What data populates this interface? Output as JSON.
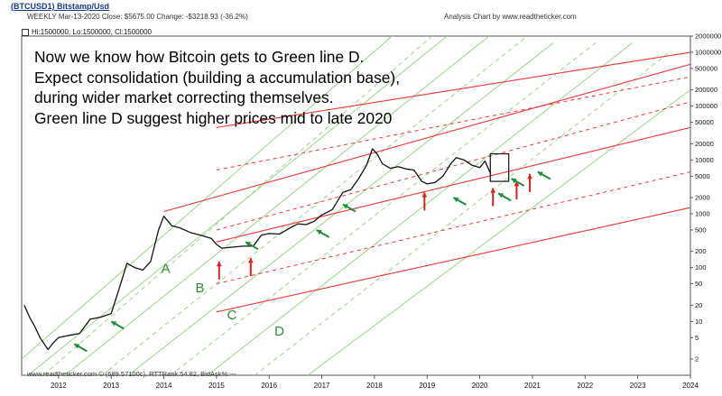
{
  "header": {
    "title": "(BTCUSD1) Bitstamp/Usd",
    "subtitle": "WEEKLY  Mar-13-2020  Close: $5675.00  Change: -$3218.93  (-36.2%)",
    "source": "Analysis Chart by www.readtheticker.com"
  },
  "legend": {
    "text": "Hi:1500000, Lo:1500000, Cl:1500000"
  },
  "annotation": {
    "lines": [
      "Now we know how Bitcoin gets to Green line D.",
      "Expect consolidation (building a accumulation base),",
      "during wider market correcting themselves.",
      "Green line D suggest higher prices mid to late 2020"
    ]
  },
  "footer": {
    "text": "www.readtheticker.com © (689.57100c), RTTRank:54.82, BidAsk%:---"
  },
  "chart_data": {
    "type": "line",
    "scale": "log",
    "ylim": [
      1,
      2000000
    ],
    "xlim": [
      2011.3,
      2024.0
    ],
    "y_ticks": [
      2000000,
      1000000,
      500000,
      200000,
      100000,
      50000,
      20000,
      10000,
      5000,
      2000,
      1000,
      500,
      200,
      100,
      50,
      20,
      10,
      5,
      2
    ],
    "y_tick_labels": [
      "2000000",
      "1000000",
      "500000",
      "200000",
      "100000",
      "50000",
      "20000",
      "10000",
      "5000",
      "2000",
      "1000",
      "500",
      "200",
      "100",
      "50",
      "20",
      "10",
      "5",
      "2"
    ],
    "x_ticks": [
      2012,
      2013,
      2014,
      2015,
      2016,
      2017,
      2018,
      2019,
      2020,
      2021,
      2022,
      2023,
      2024
    ],
    "x_tick_labels": [
      "2012",
      "2013",
      "2014",
      "2015",
      "2016",
      "2017",
      "2018",
      "2019",
      "2020",
      "2021",
      "2022",
      "2023",
      "2024"
    ],
    "price_series": {
      "x": [
        2011.35,
        2011.45,
        2011.55,
        2011.65,
        2011.8,
        2011.9,
        2012.0,
        2012.2,
        2012.4,
        2012.6,
        2012.8,
        2013.0,
        2013.15,
        2013.3,
        2013.45,
        2013.6,
        2013.75,
        2013.9,
        2014.0,
        2014.15,
        2014.3,
        2014.5,
        2014.7,
        2014.9,
        2015.0,
        2015.1,
        2015.3,
        2015.5,
        2015.7,
        2015.85,
        2016.0,
        2016.2,
        2016.4,
        2016.55,
        2016.7,
        2016.85,
        2017.0,
        2017.2,
        2017.4,
        2017.55,
        2017.7,
        2017.85,
        2017.96,
        2018.05,
        2018.15,
        2018.3,
        2018.45,
        2018.6,
        2018.75,
        2018.9,
        2019.0,
        2019.15,
        2019.3,
        2019.45,
        2019.55,
        2019.7,
        2019.85,
        2020.0,
        2020.1,
        2020.2
      ],
      "y": [
        20,
        12,
        8,
        5,
        3,
        4,
        5,
        5.5,
        6,
        11,
        12,
        14,
        40,
        120,
        100,
        90,
        130,
        500,
        900,
        600,
        550,
        450,
        400,
        350,
        270,
        230,
        240,
        250,
        250,
        400,
        430,
        420,
        550,
        650,
        630,
        720,
        950,
        1200,
        2500,
        2800,
        4500,
        8000,
        16000,
        13000,
        8500,
        7000,
        7500,
        6800,
        6500,
        4000,
        3600,
        3800,
        5000,
        8500,
        11000,
        10000,
        8000,
        7200,
        9500,
        5700
      ]
    },
    "channel_lines": {
      "red_solid": [
        {
          "x": [
            2015.0,
            2024.0
          ],
          "y": [
            40000,
            1000000
          ]
        },
        {
          "x": [
            2014.0,
            2024.0
          ],
          "y": [
            1100,
            600000
          ]
        },
        {
          "x": [
            2015.0,
            2024.0
          ],
          "y": [
            300,
            40000
          ]
        },
        {
          "x": [
            2015.0,
            2024.0
          ],
          "y": [
            15,
            1300
          ]
        }
      ],
      "red_dashed": [
        {
          "x": [
            2015.0,
            2024.0
          ],
          "y": [
            6500,
            350000
          ]
        },
        {
          "x": [
            2015.0,
            2024.0
          ],
          "y": [
            500,
            120000
          ]
        },
        {
          "x": [
            2015.0,
            2024.0
          ],
          "y": [
            50,
            6000
          ]
        }
      ],
      "green_solid": [
        {
          "x": [
            2011.3,
            2018.8
          ],
          "y": [
            2,
            5000000
          ]
        },
        {
          "x": [
            2011.3,
            2019.6
          ],
          "y": [
            0.8,
            3000000
          ]
        },
        {
          "x": [
            2012.0,
            2020.4
          ],
          "y": [
            0.8,
            3000000
          ]
        },
        {
          "x": [
            2013.2,
            2021.4
          ],
          "y": [
            0.8,
            1500000
          ]
        },
        {
          "x": [
            2014.7,
            2022.9
          ],
          "y": [
            0.8,
            1500000
          ]
        },
        {
          "x": [
            2016.6,
            2024.0
          ],
          "y": [
            0.8,
            200000
          ]
        }
      ],
      "green_dashed": [
        {
          "x": [
            2011.6,
            2019.3
          ],
          "y": [
            0.8,
            3000000
          ]
        },
        {
          "x": [
            2012.7,
            2020.9
          ],
          "y": [
            0.8,
            2000000
          ]
        },
        {
          "x": [
            2014.0,
            2022.2
          ],
          "y": [
            0.8,
            1500000
          ]
        },
        {
          "x": [
            2015.6,
            2023.6
          ],
          "y": [
            0.8,
            1000000
          ]
        }
      ]
    },
    "channel_labels": [
      {
        "label": "A",
        "x": 2013.95,
        "y": 80
      },
      {
        "label": "B",
        "x": 2014.6,
        "y": 35
      },
      {
        "label": "C",
        "x": 2015.2,
        "y": 11
      },
      {
        "label": "D",
        "x": 2016.1,
        "y": 5.5
      }
    ],
    "box": {
      "x": [
        2020.2,
        2020.55
      ],
      "y": [
        4000,
        13000
      ]
    },
    "arrows": {
      "red_up": [
        [
          2015.05,
          130
        ],
        [
          2015.65,
          150
        ],
        [
          2018.95,
          2500
        ],
        [
          2020.25,
          3000
        ],
        [
          2020.7,
          4000
        ],
        [
          2020.95,
          5500
        ]
      ],
      "green_up_left": [
        [
          2012.3,
          3.8
        ],
        [
          2013.0,
          10
        ],
        [
          2015.55,
          300
        ],
        [
          2016.9,
          500
        ],
        [
          2017.4,
          1500
        ],
        [
          2019.5,
          2000
        ],
        [
          2020.35,
          2400
        ],
        [
          2020.6,
          4500
        ],
        [
          2021.1,
          6000
        ]
      ]
    }
  }
}
